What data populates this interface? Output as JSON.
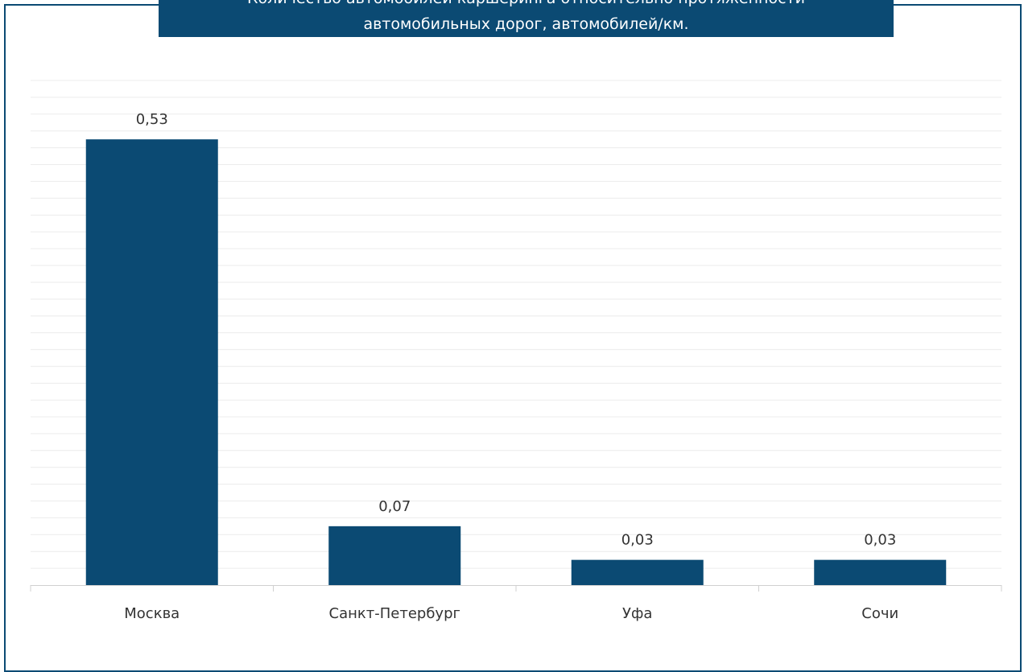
{
  "chart_data": {
    "type": "bar",
    "title_lines": [
      "Количество автомобилей каршеринга относительно протяженности",
      "автомобильных дорог, автомобилей/км."
    ],
    "categories": [
      "Москва",
      "Санкт-Петербург",
      "Уфа",
      "Сочи"
    ],
    "values": [
      0.53,
      0.07,
      0.03,
      0.03
    ],
    "value_labels": [
      "0,53",
      "0,07",
      "0,03",
      "0,03"
    ],
    "xlabel": "",
    "ylabel": "",
    "ylim": [
      0,
      0.6
    ],
    "grid": true,
    "legend": "none",
    "bar_color": "#0b4a73",
    "title_bg_color": "#0b4a73",
    "gridline_color": "#ececec"
  }
}
